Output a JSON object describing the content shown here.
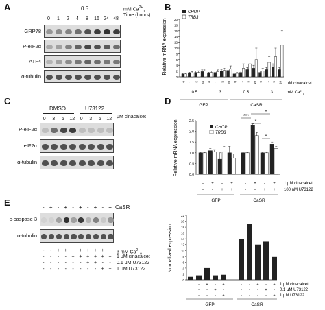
{
  "panels": {
    "A": {
      "letter": "A",
      "header_value": "0.5",
      "header_unit": "mM Ca",
      "header_unit_suffix": "2+o",
      "time_label": "Time (hours)",
      "timepoints": [
        "0",
        "1",
        "2",
        "4",
        "8",
        "16",
        "24",
        "48"
      ],
      "rows": [
        {
          "label": "GRP78",
          "intensity": [
            0.35,
            0.4,
            0.45,
            0.55,
            0.7,
            0.8,
            0.85,
            0.8
          ]
        },
        {
          "label": "P-eIF2α",
          "intensity": [
            0.25,
            0.3,
            0.45,
            0.6,
            0.75,
            0.7,
            0.65,
            0.55
          ]
        },
        {
          "label": "ATF4",
          "intensity": [
            0.2,
            0.3,
            0.4,
            0.5,
            0.6,
            0.55,
            0.5,
            0.5
          ]
        },
        {
          "label": "α-tubulin",
          "intensity": [
            0.7,
            0.7,
            0.7,
            0.7,
            0.7,
            0.7,
            0.7,
            0.7
          ]
        }
      ]
    },
    "B": {
      "letter": "B",
      "legend": [
        "CHOP",
        "TRB3"
      ],
      "ylabel": "Relative mRNA expression",
      "yticks": [
        "0",
        "2",
        "4",
        "6",
        "8",
        "10",
        "12",
        "14",
        "16",
        "18",
        "20"
      ],
      "cinacalcet_label": "μM cinacalcet",
      "ca_label": "mM Ca",
      "ca_values": [
        "0.5",
        "3",
        "0.5",
        "3"
      ],
      "groups": [
        "GFP",
        "CaSR"
      ]
    },
    "C": {
      "letter": "C",
      "treatments": [
        "DMSO",
        "U73122"
      ],
      "doses": [
        "0",
        "3",
        "6",
        "12",
        "0",
        "3",
        "6",
        "12"
      ],
      "dose_label": "μM cinacalcet",
      "rows": [
        {
          "label": "P-eIF2α",
          "intensity": [
            0.15,
            0.55,
            0.75,
            0.8,
            0.15,
            0.15,
            0.15,
            0.15
          ]
        },
        {
          "label": "eIF2α",
          "intensity": [
            0.7,
            0.7,
            0.7,
            0.7,
            0.7,
            0.7,
            0.7,
            0.7
          ]
        },
        {
          "label": "α-tubulin",
          "intensity": [
            0.7,
            0.7,
            0.7,
            0.7,
            0.7,
            0.7,
            0.7,
            0.7
          ]
        }
      ]
    },
    "D_top": {
      "letter": "D",
      "legend": [
        "CHOP",
        "TRB3"
      ],
      "ylabel": "Relative mRNA expression",
      "yticks": [
        "0.0",
        "0.5",
        "1.0",
        "1.5",
        "2.0",
        "2.5"
      ],
      "ymax": 2.5,
      "significance": [
        "***",
        "*",
        "*",
        "*"
      ],
      "row1": [
        "-",
        "+",
        "-",
        "+",
        "-",
        "+",
        "-",
        "+"
      ],
      "row2": [
        "-",
        "-",
        "+",
        "+",
        "-",
        "-",
        "+",
        "+"
      ],
      "row1_label": "1 μM cinacalcet",
      "row2_label": "100 nM U73122",
      "groups": [
        "GFP",
        "CaSR"
      ]
    },
    "D_bottom": {
      "ylabel": "Normalized expression",
      "yticks": [
        "0",
        "2",
        "4",
        "6",
        "8",
        "10",
        "12",
        "14",
        "16",
        "18",
        "20",
        "22"
      ],
      "ymax": 22,
      "row1": [
        "",
        "-",
        "+",
        "-",
        "+",
        "-",
        "-",
        "+",
        "-",
        "+"
      ],
      "row2": [
        "",
        "-",
        "-",
        "+",
        "-",
        "-",
        "-",
        "-",
        "+",
        "-"
      ],
      "row3": [
        "",
        "-",
        "-",
        "-",
        "+",
        "-",
        "-",
        "-",
        "-",
        "+"
      ],
      "row1_label": "1 μM cinacalcet",
      "row2_label": "0.1 μM U73122",
      "row3_label": "1 μM U73122",
      "groups": [
        "GFP",
        "CaSR"
      ]
    },
    "E": {
      "letter": "E",
      "casr_signs": [
        "-",
        "+",
        "-",
        "+",
        "-",
        "+",
        "-",
        "+",
        "-",
        "+"
      ],
      "casr_label": "CaSR",
      "rows": [
        {
          "label": "c-caspase 3",
          "intensity": [
            0.05,
            0.05,
            0.3,
            0.85,
            0.3,
            0.8,
            0.2,
            0.45,
            0.1,
            0.35
          ]
        },
        {
          "label": "α-tubulin",
          "intensity": [
            0.7,
            0.7,
            0.7,
            0.7,
            0.7,
            0.7,
            0.7,
            0.7,
            0.7,
            0.7
          ]
        }
      ],
      "cond_rows": [
        {
          "label": "3 mM Ca",
          "signs": [
            "-",
            "-",
            "+",
            "+",
            "+",
            "+",
            "+",
            "+",
            "+",
            "+"
          ]
        },
        {
          "label": "1 μM cinacalcet",
          "signs": [
            "-",
            "-",
            "-",
            "-",
            "+",
            "+",
            "+",
            "+",
            "+",
            "+"
          ]
        },
        {
          "label": "0.1 μM U73122",
          "signs": [
            "-",
            "-",
            "-",
            "-",
            "-",
            "-",
            "+",
            "+",
            "-",
            "-"
          ]
        },
        {
          "label": "1 μM U73122",
          "signs": [
            "-",
            "-",
            "-",
            "-",
            "-",
            "-",
            "-",
            "-",
            "+",
            "+"
          ]
        }
      ]
    }
  },
  "chart_data": [
    {
      "type": "bar",
      "panel": "B",
      "ylabel": "Relative mRNA expression",
      "ylim": [
        0,
        20
      ],
      "categories": [
        "GFP 0.5 mM Ca 0",
        "GFP 0.5 mM Ca 1",
        "GFP 0.5 mM Ca 5",
        "GFP 0.5 mM Ca 10",
        "GFP 3 mM Ca 0",
        "GFP 3 mM Ca 1",
        "GFP 3 mM Ca 5",
        "GFP 3 mM Ca 10",
        "CaSR 0.5 mM Ca 0",
        "CaSR 0.5 mM Ca 1",
        "CaSR 0.5 mM Ca 5",
        "CaSR 0.5 mM Ca 10",
        "CaSR 3 mM Ca 0",
        "CaSR 3 mM Ca 1",
        "CaSR 3 mM Ca 5",
        "CaSR 3 mM Ca 10"
      ],
      "series": [
        {
          "name": "CHOP",
          "values": [
            1,
            1.2,
            1.5,
            1.8,
            1.2,
            1.5,
            2,
            2.2,
            1,
            1.5,
            2.5,
            3,
            1.5,
            2.5,
            3.5,
            2.5
          ]
        },
        {
          "name": "TRB3",
          "values": [
            1,
            1.3,
            1.5,
            2,
            1.5,
            1.8,
            2.2,
            2.8,
            1.2,
            3,
            4.5,
            6,
            2,
            5,
            7,
            11
          ]
        }
      ],
      "errors": [
        [
          0.3,
          0.4,
          0.5,
          0.6,
          0.4,
          0.5,
          0.6,
          0.6,
          0.3,
          0.5,
          0.8,
          1,
          0.5,
          0.8,
          1,
          0.8
        ],
        [
          0.3,
          0.5,
          0.6,
          0.7,
          0.5,
          0.6,
          0.8,
          1,
          0.4,
          1.5,
          2,
          4,
          1,
          2,
          3,
          5
        ]
      ]
    },
    {
      "type": "bar",
      "panel": "D_top",
      "ylabel": "Relative mRNA expression",
      "ylim": [
        0,
        2.5
      ],
      "categories": [
        "GFP -/-",
        "GFP +/-",
        "GFP -/+",
        "GFP +/+",
        "CaSR -/-",
        "CaSR +/-",
        "CaSR -/+",
        "CaSR +/+"
      ],
      "series": [
        {
          "name": "CHOP",
          "values": [
            1,
            1.1,
            0.7,
            1.0,
            1,
            2.3,
            1.0,
            1.4
          ]
        },
        {
          "name": "TRB3",
          "values": [
            1,
            1.05,
            1.05,
            0.75,
            1,
            1.8,
            1.0,
            1.2
          ]
        }
      ],
      "errors": [
        [
          0.03,
          0.1,
          0.3,
          0.3,
          0.03,
          0.05,
          0.05,
          0.1
        ],
        [
          0.03,
          0.1,
          0.25,
          0.2,
          0.03,
          0.15,
          0.05,
          0.1
        ]
      ]
    },
    {
      "type": "bar",
      "panel": "D_bottom",
      "ylabel": "Normalized expression",
      "ylim": [
        0,
        22
      ],
      "categories": [
        "GFP 1",
        "GFP 2",
        "GFP 3",
        "GFP 4",
        "GFP 5",
        "CaSR 1",
        "CaSR 2",
        "CaSR 3",
        "CaSR 4",
        "CaSR 5"
      ],
      "values": [
        1,
        1.5,
        4,
        1.5,
        1.7,
        14,
        19,
        12,
        13,
        8
      ]
    }
  ]
}
